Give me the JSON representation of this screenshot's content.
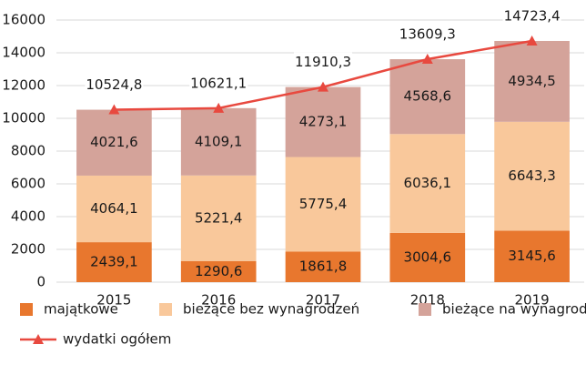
{
  "chart_data": {
    "type": "bar",
    "stacked": true,
    "categories": [
      "2015",
      "2016",
      "2017",
      "2018",
      "2019"
    ],
    "series": [
      {
        "name": "majątkowe",
        "color": "#e8772e",
        "values": [
          2439.1,
          1290.6,
          1861.8,
          3004.6,
          3145.6
        ],
        "value_labels": [
          "2439,1",
          "1290,6",
          "1861,8",
          "3004,6",
          "3145,6"
        ]
      },
      {
        "name": "bieżące bez wynagrodzeń",
        "color": "#f9c89b",
        "values": [
          4064.1,
          5221.4,
          5775.4,
          6036.1,
          6643.3
        ],
        "value_labels": [
          "4064,1",
          "5221,4",
          "5775,4",
          "6036,1",
          "6643,3"
        ]
      },
      {
        "name": "bieżące na wynagrodzenia z pochodnymi",
        "color": "#d4a39a",
        "values": [
          4021.6,
          4109.1,
          4273.1,
          4568.6,
          4934.5
        ],
        "value_labels": [
          "4021,6",
          "4109,1",
          "4273,1",
          "4568,6",
          "4934,5"
        ]
      },
      {
        "name": "wydatki ogółem",
        "type": "line",
        "color": "#e8493f",
        "values": [
          10524.8,
          10621.1,
          11910.3,
          13609.3,
          14723.4
        ],
        "value_labels": [
          "10524,8",
          "10621,1",
          "11910,3",
          "13609,3",
          "14723,4"
        ]
      }
    ],
    "ylim": [
      0,
      16000
    ],
    "yticks": [
      0,
      2000,
      4000,
      6000,
      8000,
      10000,
      12000,
      14000,
      16000
    ],
    "grid": true,
    "legend": "bottom"
  }
}
